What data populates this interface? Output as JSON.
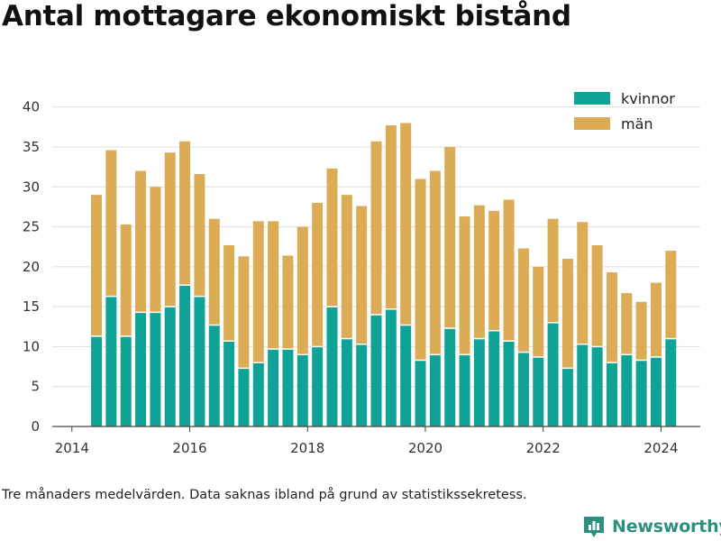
{
  "title": "Antal mottagare ekonomiskt bistånd",
  "footnote": "Tre månaders medelvärden. Data saknas ibland på grund av statistikssekretess.",
  "brand": {
    "name": "Newsworthy",
    "icon": "bar-chart-logo-icon"
  },
  "colors": {
    "kvinnor": "#0fa396",
    "man": "#dbab56",
    "grid": "#dddddd",
    "axis": "#444444",
    "brand": "#2f8f7e"
  },
  "chart_data": {
    "type": "bar",
    "stacked": true,
    "title": "Antal mottagare ekonomiskt bistånd",
    "x": [
      "2014-06",
      "2014-09",
      "2014-12",
      "2015-03",
      "2015-06",
      "2015-09",
      "2015-12",
      "2016-03",
      "2016-06",
      "2016-09",
      "2016-12",
      "2017-03",
      "2017-06",
      "2017-09",
      "2017-12",
      "2018-03",
      "2018-06",
      "2018-09",
      "2018-12",
      "2019-03",
      "2019-06",
      "2019-09",
      "2019-12",
      "2020-03",
      "2020-06",
      "2020-09",
      "2020-12",
      "2021-03",
      "2021-06",
      "2021-09",
      "2021-12",
      "2022-03",
      "2022-06",
      "2022-09",
      "2022-12",
      "2023-03",
      "2023-06",
      "2023-09",
      "2023-12",
      "2024-03"
    ],
    "series": [
      {
        "name": "kvinnor",
        "values": [
          11.3,
          16.3,
          11.3,
          14.3,
          14.3,
          15,
          17.7,
          16.3,
          12.7,
          10.7,
          7.3,
          8,
          9.7,
          9.7,
          9,
          10,
          15,
          11,
          10.3,
          14,
          14.7,
          12.7,
          8.3,
          9,
          12.3,
          9,
          11,
          12,
          10.7,
          9.3,
          8.7,
          13,
          7.3,
          10.3,
          10,
          8,
          9,
          8.3,
          8.7,
          11
        ]
      },
      {
        "name": "män",
        "values": [
          17.7,
          18.3,
          14,
          17.7,
          15.7,
          19.3,
          18,
          15.3,
          13.3,
          12,
          14,
          17.7,
          16,
          11.7,
          16,
          18,
          17.3,
          18,
          17.3,
          21.7,
          23,
          25.3,
          22.7,
          23,
          22.7,
          17.3,
          16.7,
          15,
          17.7,
          13,
          11.3,
          13,
          13.7,
          15.3,
          12.7,
          11.3,
          7.7,
          7.3,
          9.3,
          11
        ]
      }
    ],
    "x_ticks": [
      "2014",
      "2016",
      "2018",
      "2020",
      "2022",
      "2024"
    ],
    "y_ticks": [
      0,
      5,
      10,
      15,
      20,
      25,
      30,
      35,
      40
    ],
    "xlim": [
      "2013-09",
      "2024-09"
    ],
    "ylim": [
      0,
      42
    ],
    "grid": "horizontal",
    "legend": "top-right"
  }
}
